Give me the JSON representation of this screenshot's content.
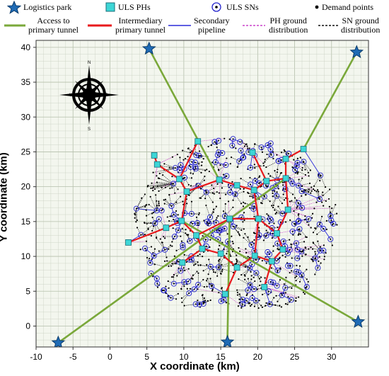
{
  "legend": {
    "logistics_park": "Logistics park",
    "uls_phs": "ULS PHs",
    "uls_sns": "ULS SNs",
    "demand_points": "Demand points",
    "access_line1": "Access to",
    "access_line2": "primary tunnel",
    "intermediary_line1": "Intermediary",
    "intermediary_line2": "primary tunnel",
    "secondary_line1": "Secondary",
    "secondary_line2": "pipeline",
    "ph_ground_line1": "PH ground",
    "ph_ground_line2": "distribution",
    "sn_ground_line1": "SN ground",
    "sn_ground_line2": "distribution"
  },
  "axes": {
    "xlabel": "X coordinate (km)",
    "ylabel": "Y coordinate (km)",
    "xlim": [
      -10,
      35
    ],
    "ylim": [
      -3,
      41
    ],
    "xticks": [
      -10,
      -5,
      0,
      5,
      10,
      15,
      20,
      25,
      30
    ],
    "yticks": [
      0,
      5,
      10,
      15,
      20,
      25,
      30,
      35,
      40
    ]
  },
  "compass": {
    "n": "N",
    "s": "S",
    "e": "E",
    "w": "W"
  },
  "colors": {
    "logistics_park": "#1f6bb5",
    "ph": "#3dd6d6",
    "sn": "#2222cc",
    "access": "#7aa83a",
    "intermediary": "#e8191c",
    "secondary": "#2a2ad8",
    "ph_ground": "#cc44cc",
    "sn_ground": "#111111",
    "grid": "#c8cfc0",
    "plot_bg": "#f3f6ee"
  },
  "network": {
    "logistics_parks": [
      [
        5.3,
        39.8
      ],
      [
        33.4,
        39.3
      ],
      [
        33.6,
        0.6
      ],
      [
        15.9,
        -2.3
      ],
      [
        -7.0,
        -2.4
      ]
    ],
    "access_links": [
      [
        0,
        5
      ],
      [
        1,
        10
      ],
      [
        2,
        16
      ],
      [
        3,
        15
      ],
      [
        4,
        9
      ]
    ],
    "phs": [
      [
        11.9,
        26.5
      ],
      [
        6.0,
        24.5
      ],
      [
        6.4,
        23.2
      ],
      [
        9.4,
        21.1
      ],
      [
        10.4,
        19.3
      ],
      [
        14.8,
        21.0
      ],
      [
        17.2,
        20.2
      ],
      [
        19.5,
        19.5
      ],
      [
        21.2,
        20.8
      ],
      [
        23.8,
        21.2
      ],
      [
        26.2,
        25.4
      ],
      [
        23.8,
        24.0
      ],
      [
        19.3,
        24.9
      ],
      [
        24.1,
        16.7
      ],
      [
        20.1,
        15.4
      ],
      [
        16.2,
        15.4
      ],
      [
        9.7,
        15.1
      ],
      [
        7.6,
        14.1
      ],
      [
        11.7,
        13.0
      ],
      [
        2.5,
        12.0
      ],
      [
        12.5,
        11.1
      ],
      [
        15.0,
        10.4
      ],
      [
        9.8,
        9.1
      ],
      [
        17.2,
        8.4
      ],
      [
        19.6,
        10.1
      ],
      [
        21.9,
        9.3
      ],
      [
        23.4,
        11.0
      ],
      [
        22.6,
        13.3
      ],
      [
        20.9,
        5.6
      ],
      [
        15.6,
        4.6
      ]
    ],
    "intermediary_links": [
      [
        0,
        3
      ],
      [
        1,
        2
      ],
      [
        2,
        3
      ],
      [
        3,
        4
      ],
      [
        4,
        5
      ],
      [
        5,
        6
      ],
      [
        6,
        7
      ],
      [
        7,
        8
      ],
      [
        8,
        9
      ],
      [
        9,
        11
      ],
      [
        11,
        10
      ],
      [
        8,
        12
      ],
      [
        7,
        14
      ],
      [
        9,
        13
      ],
      [
        13,
        27
      ],
      [
        14,
        15
      ],
      [
        15,
        18
      ],
      [
        4,
        16
      ],
      [
        16,
        17
      ],
      [
        17,
        19
      ],
      [
        16,
        18
      ],
      [
        18,
        20
      ],
      [
        20,
        21
      ],
      [
        21,
        23
      ],
      [
        23,
        24
      ],
      [
        24,
        25
      ],
      [
        25,
        26
      ],
      [
        26,
        27
      ],
      [
        27,
        14
      ],
      [
        20,
        22
      ],
      [
        25,
        28
      ],
      [
        23,
        29
      ],
      [
        14,
        24
      ]
    ],
    "sn_count": 210,
    "demand_count": 820
  }
}
